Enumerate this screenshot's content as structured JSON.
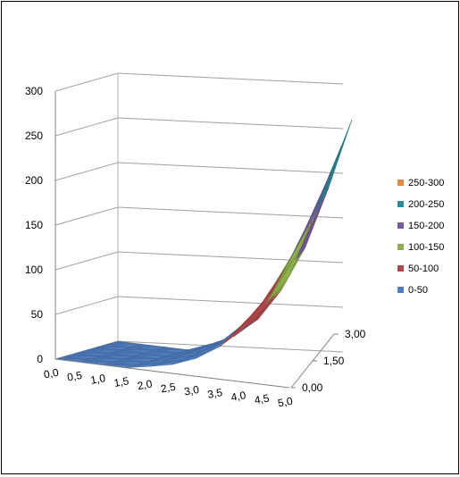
{
  "chart_data": {
    "type": "surface",
    "title": "",
    "xlabel": "",
    "ylabel": "",
    "zlabel": "",
    "x_ticks": [
      "0,0",
      "0,5",
      "1,0",
      "1,5",
      "2,0",
      "2,5",
      "3,0",
      "3,5",
      "4,0",
      "4,5",
      "5,0"
    ],
    "depth_ticks": [
      "0,00",
      "1,50",
      "3,00"
    ],
    "z_ticks": [
      "0",
      "50",
      "100",
      "150",
      "200",
      "250",
      "300"
    ],
    "zlim": [
      0,
      300
    ],
    "grid": true,
    "legend_position": "right",
    "bands": [
      {
        "label": "250-300",
        "color": "#E8893C"
      },
      {
        "label": "200-250",
        "color": "#2E8B9A"
      },
      {
        "label": "150-200",
        "color": "#7A5A9E"
      },
      {
        "label": "100-150",
        "color": "#8CB04A"
      },
      {
        "label": "50-100",
        "color": "#B3484A"
      },
      {
        "label": "0-50",
        "color": "#4F7FC0"
      }
    ],
    "profile": {
      "x": [
        0.0,
        0.5,
        1.0,
        1.5,
        2.0,
        2.5,
        3.0,
        3.5,
        4.0,
        4.5,
        5.0
      ],
      "z_at_max_depth": [
        0,
        0,
        0,
        0,
        10,
        22,
        44,
        80,
        130,
        200,
        280
      ]
    }
  }
}
